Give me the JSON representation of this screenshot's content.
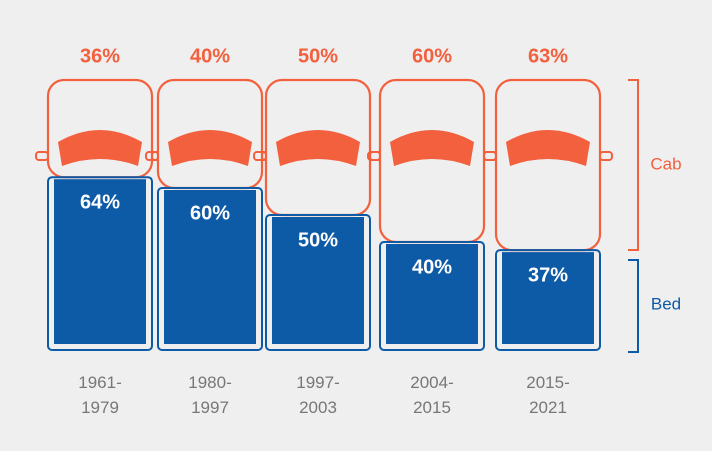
{
  "chart_data": {
    "type": "stacked-bar",
    "categories": [
      "1961-1979",
      "1980-1997",
      "1997-2003",
      "2004-2015",
      "2015-2021"
    ],
    "series": [
      {
        "name": "Cab",
        "color": "#f2603e",
        "values": [
          36,
          40,
          50,
          60,
          63
        ],
        "value_labels": [
          "36%",
          "40%",
          "50%",
          "60%",
          "63%"
        ]
      },
      {
        "name": "Bed",
        "color": "#0d5aa7",
        "values": [
          64,
          60,
          50,
          40,
          37
        ],
        "value_labels": [
          "64%",
          "60%",
          "50%",
          "40%",
          "37%"
        ]
      }
    ]
  }
}
